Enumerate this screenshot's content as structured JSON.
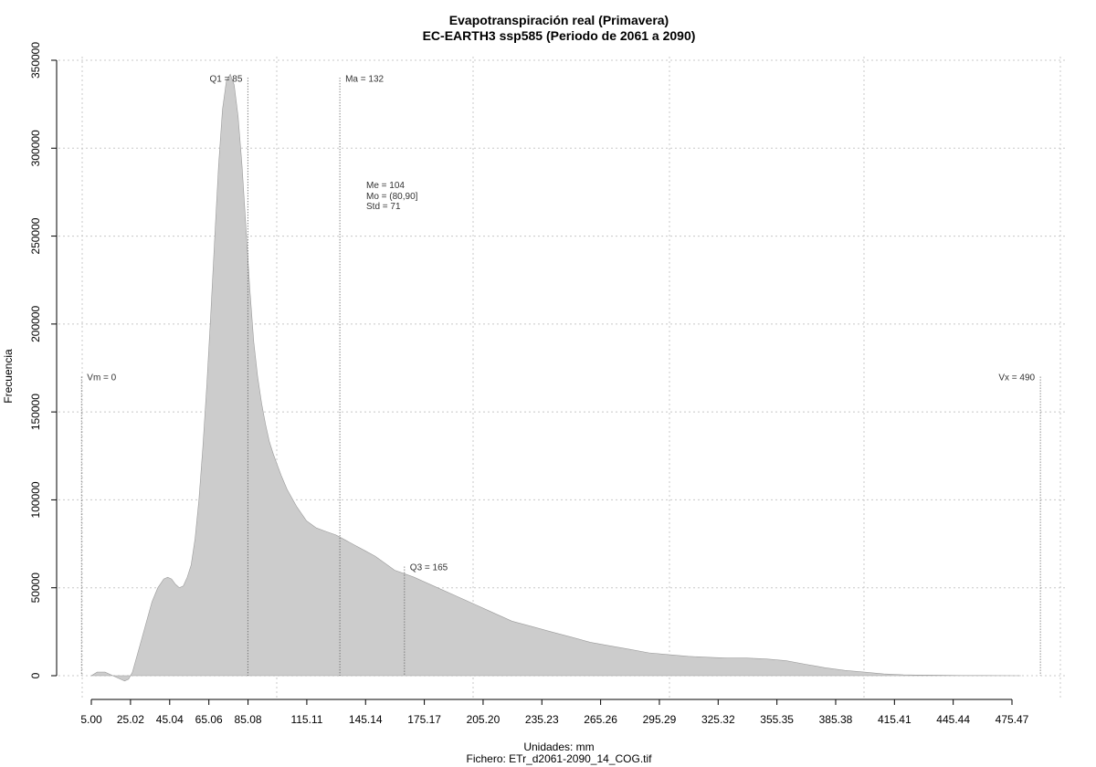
{
  "chart_data": {
    "type": "area",
    "title": "Evapotranspiración real (Primavera)",
    "subtitle": "EC-EARTH3 ssp585 (Periodo de 2061 a 2090)",
    "xlabel": "Unidades: mm",
    "ylabel": "Frecuencia",
    "footer": "Fichero: ETr_d2061-2090_14_COG.tif",
    "xlim": [
      5,
      480
    ],
    "ylim": [
      0,
      350000
    ],
    "x_ticks": [
      5.0,
      25.02,
      45.04,
      65.06,
      85.08,
      115.11,
      145.14,
      175.17,
      205.2,
      235.23,
      265.26,
      295.29,
      325.32,
      355.35,
      385.38,
      415.41,
      445.44,
      475.47
    ],
    "x_tick_labels": [
      "5.00",
      "25.02",
      "45.04",
      "65.06",
      "85.08",
      "115.11",
      "145.14",
      "175.17",
      "205.20",
      "235.23",
      "265.26",
      "295.29",
      "325.32",
      "355.35",
      "385.38",
      "415.41",
      "445.44",
      "475.47"
    ],
    "y_ticks": [
      0,
      50000,
      100000,
      150000,
      200000,
      250000,
      300000,
      350000
    ],
    "y_tick_labels": [
      "0",
      "50000",
      "100000",
      "150000",
      "200000",
      "250000",
      "300000",
      "350000"
    ],
    "grid": true,
    "fill_color": "#cccccc",
    "series": [
      {
        "x": [
          5,
          8,
          12,
          16,
          20,
          22,
          24,
          26,
          28,
          30,
          33,
          36,
          39,
          42,
          44,
          46,
          48,
          50,
          52,
          54,
          56,
          58,
          60,
          62,
          64,
          66,
          68,
          70,
          72,
          74,
          76,
          78,
          80,
          82,
          84,
          86,
          88,
          90,
          92,
          94,
          96,
          98,
          100,
          102,
          105,
          110,
          115,
          120,
          125,
          130,
          135,
          140,
          145,
          150,
          155,
          160,
          165,
          170,
          180,
          190,
          200,
          210,
          220,
          230,
          240,
          250,
          260,
          270,
          280,
          290,
          300,
          310,
          320,
          330,
          340,
          350,
          360,
          370,
          380,
          390,
          400,
          410,
          420,
          430,
          440,
          450,
          460,
          470,
          480
        ],
        "y": [
          0,
          2000,
          2000,
          0,
          -2000,
          -3000,
          -2000,
          2000,
          10000,
          18000,
          30000,
          42000,
          50000,
          55000,
          56000,
          55000,
          52000,
          50000,
          51000,
          56000,
          63000,
          78000,
          100000,
          130000,
          165000,
          205000,
          248000,
          290000,
          322000,
          338000,
          342000,
          336000,
          318000,
          290000,
          255000,
          220000,
          190000,
          170000,
          155000,
          143000,
          133000,
          126000,
          120000,
          114000,
          106000,
          96000,
          88000,
          84000,
          82000,
          80000,
          77000,
          74000,
          71000,
          68000,
          64000,
          60000,
          58000,
          56000,
          51000,
          46000,
          41000,
          36000,
          31000,
          28000,
          25000,
          22000,
          19000,
          17000,
          15000,
          13000,
          12000,
          11000,
          10500,
          10000,
          10000,
          9500,
          8500,
          6500,
          4500,
          3000,
          2000,
          1000,
          500,
          300,
          200,
          100,
          80,
          50,
          0
        ]
      }
    ],
    "annotations": [
      {
        "label": "Vm = 0",
        "x": 0,
        "y_top": 170000,
        "text_anchor": "start"
      },
      {
        "label": "Q1 = 85",
        "x": 85,
        "y_top": 340000,
        "text_anchor": "end"
      },
      {
        "label": "Ma = 132",
        "x": 132,
        "y_top": 340000,
        "text_anchor": "start"
      },
      {
        "label": "Q3 = 165",
        "x": 165,
        "y_top": 62000,
        "text_anchor": "start"
      },
      {
        "label": "Vx = 490",
        "x": 490,
        "y_top": 170000,
        "text_anchor": "end"
      }
    ],
    "stats": [
      "Me = 104",
      "Mo = (80,90]",
      "Std = 71"
    ]
  }
}
